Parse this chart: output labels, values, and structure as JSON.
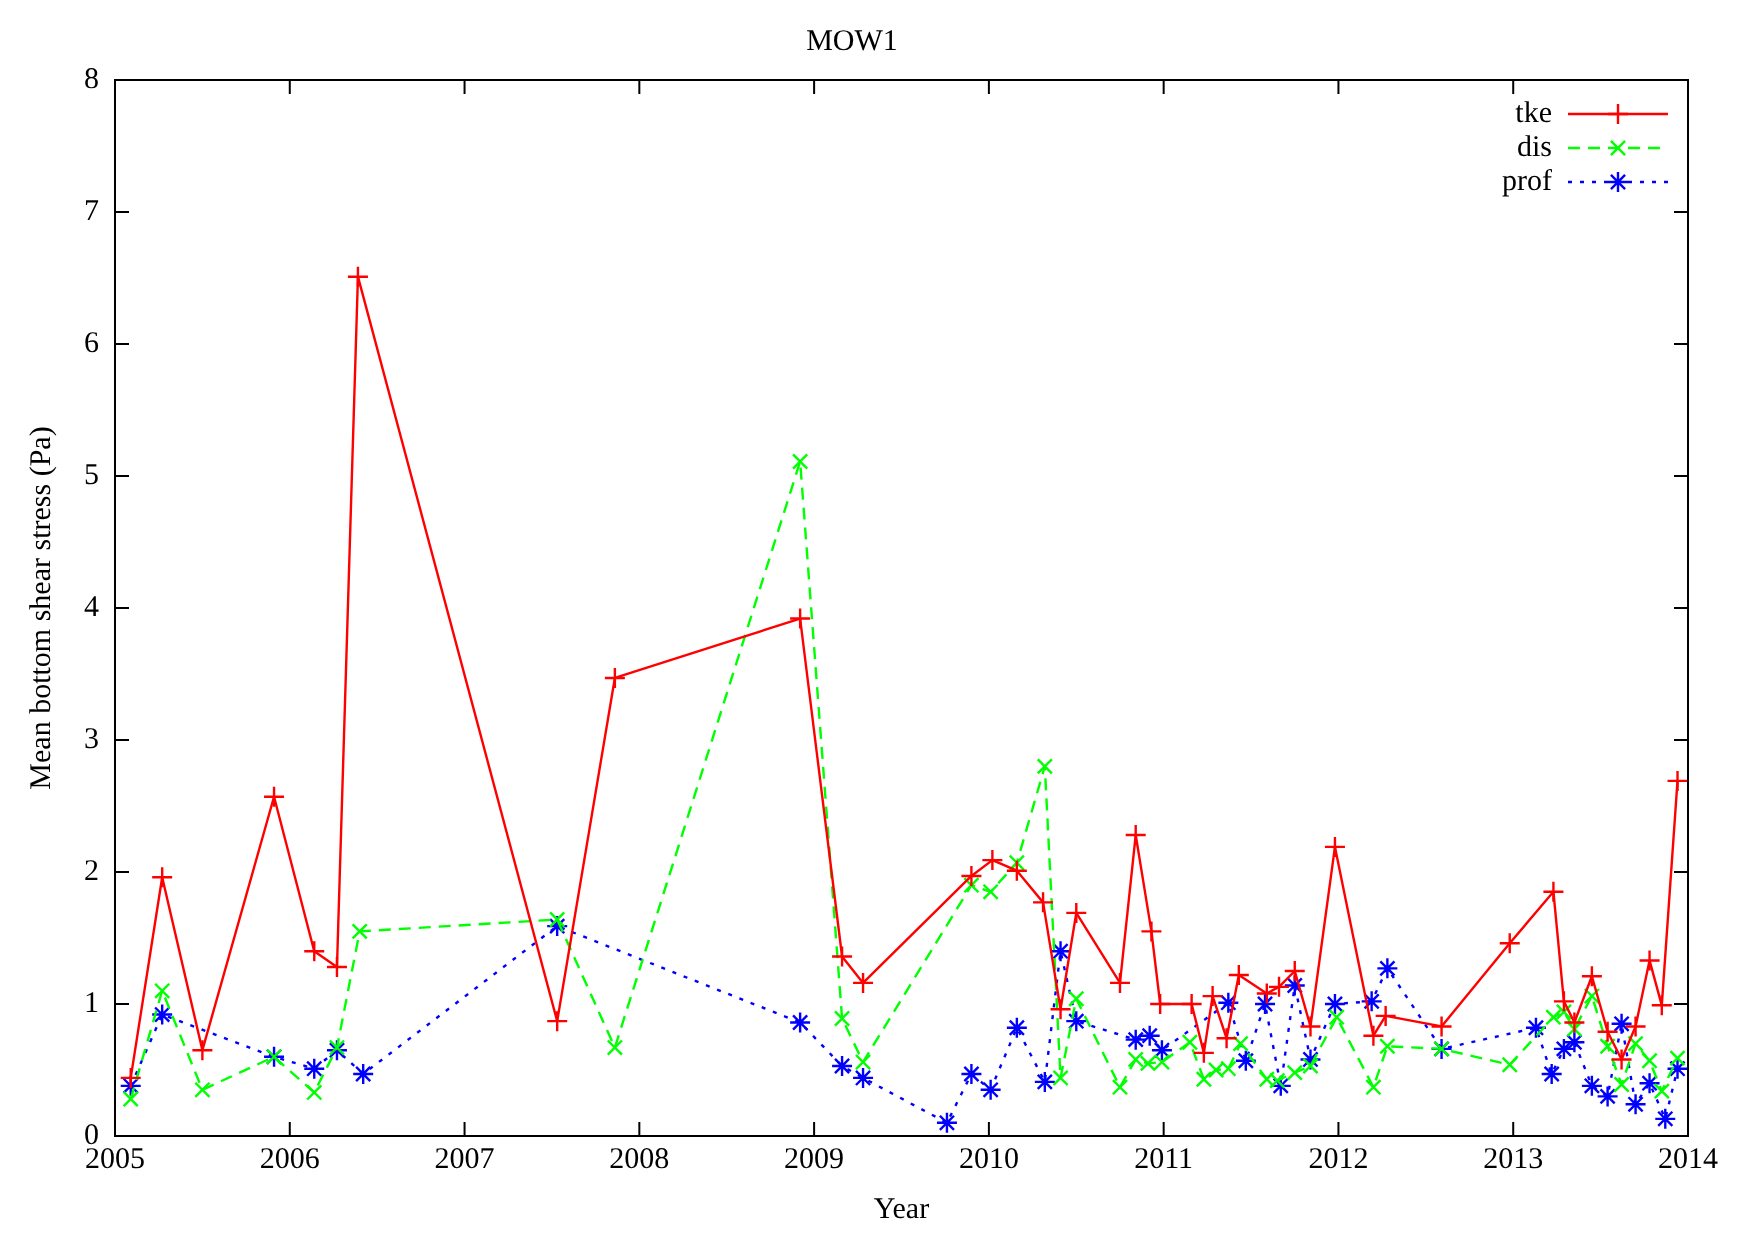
{
  "chart_data": {
    "type": "line",
    "title": "MOW1",
    "xlabel": "Year",
    "ylabel": "Mean bottom shear stress (Pa)",
    "xlim": [
      2005,
      2014
    ],
    "xticks": [
      2005,
      2006,
      2007,
      2008,
      2009,
      2010,
      2011,
      2012,
      2013,
      2014
    ],
    "ylim": [
      0,
      8
    ],
    "yticks": [
      0,
      1,
      2,
      3,
      4,
      5,
      6,
      7,
      8
    ],
    "grid": false,
    "legend": "top right",
    "series": [
      {
        "name": "tke",
        "color": "#ff0000",
        "marker": "plus",
        "line_style": "solid",
        "x": [
          2005.09,
          2005.27,
          2005.5,
          2005.91,
          2006.14,
          2006.27,
          2006.39,
          2007.53,
          2007.86,
          2008.92,
          2009.16,
          2009.28,
          2009.9,
          2010.02,
          2010.16,
          2010.31,
          2010.41,
          2010.5,
          2010.75,
          2010.84,
          2010.93,
          2010.98,
          2011.16,
          2011.23,
          2011.28,
          2011.36,
          2011.43,
          2011.59,
          2011.66,
          2011.75,
          2011.84,
          2011.98,
          2012.2,
          2012.27,
          2012.59,
          2012.98,
          2013.23,
          2013.29,
          2013.35,
          2013.45,
          2013.54,
          2013.62,
          2013.7,
          2013.78,
          2013.85,
          2013.94
        ],
        "values": [
          0.44,
          1.96,
          0.65,
          2.57,
          1.4,
          1.28,
          6.51,
          0.87,
          3.47,
          3.92,
          1.36,
          1.16,
          1.97,
          2.09,
          2.01,
          1.77,
          0.96,
          1.69,
          1.16,
          2.28,
          1.55,
          1.0,
          1.0,
          0.63,
          1.06,
          0.74,
          1.22,
          1.08,
          1.13,
          1.25,
          0.83,
          2.19,
          0.76,
          0.91,
          0.83,
          1.46,
          1.85,
          1.02,
          0.86,
          1.21,
          0.79,
          0.58,
          0.83,
          1.33,
          0.99,
          2.69
        ]
      },
      {
        "name": "dis",
        "color": "#00ff00",
        "marker": "x",
        "line_style": "dashed",
        "x": [
          2005.09,
          2005.27,
          2005.5,
          2005.91,
          2006.14,
          2006.27,
          2006.4,
          2007.53,
          2007.86,
          2008.92,
          2009.16,
          2009.28,
          2009.9,
          2010.01,
          2010.16,
          2010.32,
          2010.41,
          2010.5,
          2010.75,
          2010.84,
          2010.91,
          2010.99,
          2011.15,
          2011.23,
          2011.3,
          2011.37,
          2011.44,
          2011.59,
          2011.65,
          2011.75,
          2011.84,
          2011.99,
          2012.2,
          2012.28,
          2012.59,
          2012.98,
          2013.23,
          2013.29,
          2013.35,
          2013.45,
          2013.54,
          2013.62,
          2013.7,
          2013.78,
          2013.85,
          2013.94
        ],
        "values": [
          0.28,
          1.1,
          0.35,
          0.6,
          0.33,
          0.67,
          1.55,
          1.64,
          0.67,
          5.11,
          0.89,
          0.56,
          1.9,
          1.85,
          2.07,
          2.8,
          0.44,
          1.04,
          0.37,
          0.58,
          0.55,
          0.56,
          0.71,
          0.43,
          0.5,
          0.51,
          0.7,
          0.43,
          0.42,
          0.48,
          0.53,
          0.9,
          0.37,
          0.68,
          0.66,
          0.54,
          0.9,
          0.94,
          0.81,
          1.06,
          0.68,
          0.39,
          0.7,
          0.57,
          0.34,
          0.59
        ]
      },
      {
        "name": "prof",
        "color": "#0000ff",
        "marker": "cross",
        "line_style": "dotted",
        "x": [
          2005.09,
          2005.27,
          2005.91,
          2006.14,
          2006.27,
          2006.42,
          2007.53,
          2008.92,
          2009.16,
          2009.28,
          2009.76,
          2009.9,
          2010.01,
          2010.16,
          2010.32,
          2010.41,
          2010.5,
          2010.84,
          2010.92,
          2010.99,
          2011.37,
          2011.47,
          2011.58,
          2011.67,
          2011.75,
          2011.84,
          2011.98,
          2012.19,
          2012.28,
          2012.59,
          2013.13,
          2013.22,
          2013.29,
          2013.35,
          2013.45,
          2013.54,
          2013.62,
          2013.7,
          2013.78,
          2013.87,
          2013.94
        ],
        "values": [
          0.38,
          0.92,
          0.6,
          0.51,
          0.65,
          0.47,
          1.59,
          0.86,
          0.53,
          0.44,
          0.1,
          0.47,
          0.35,
          0.82,
          0.41,
          1.4,
          0.87,
          0.73,
          0.76,
          0.65,
          1.01,
          0.57,
          1.0,
          0.38,
          1.14,
          0.58,
          1.0,
          1.02,
          1.27,
          0.66,
          0.82,
          0.47,
          0.66,
          0.71,
          0.38,
          0.3,
          0.85,
          0.24,
          0.4,
          0.13,
          0.51
        ]
      }
    ]
  }
}
